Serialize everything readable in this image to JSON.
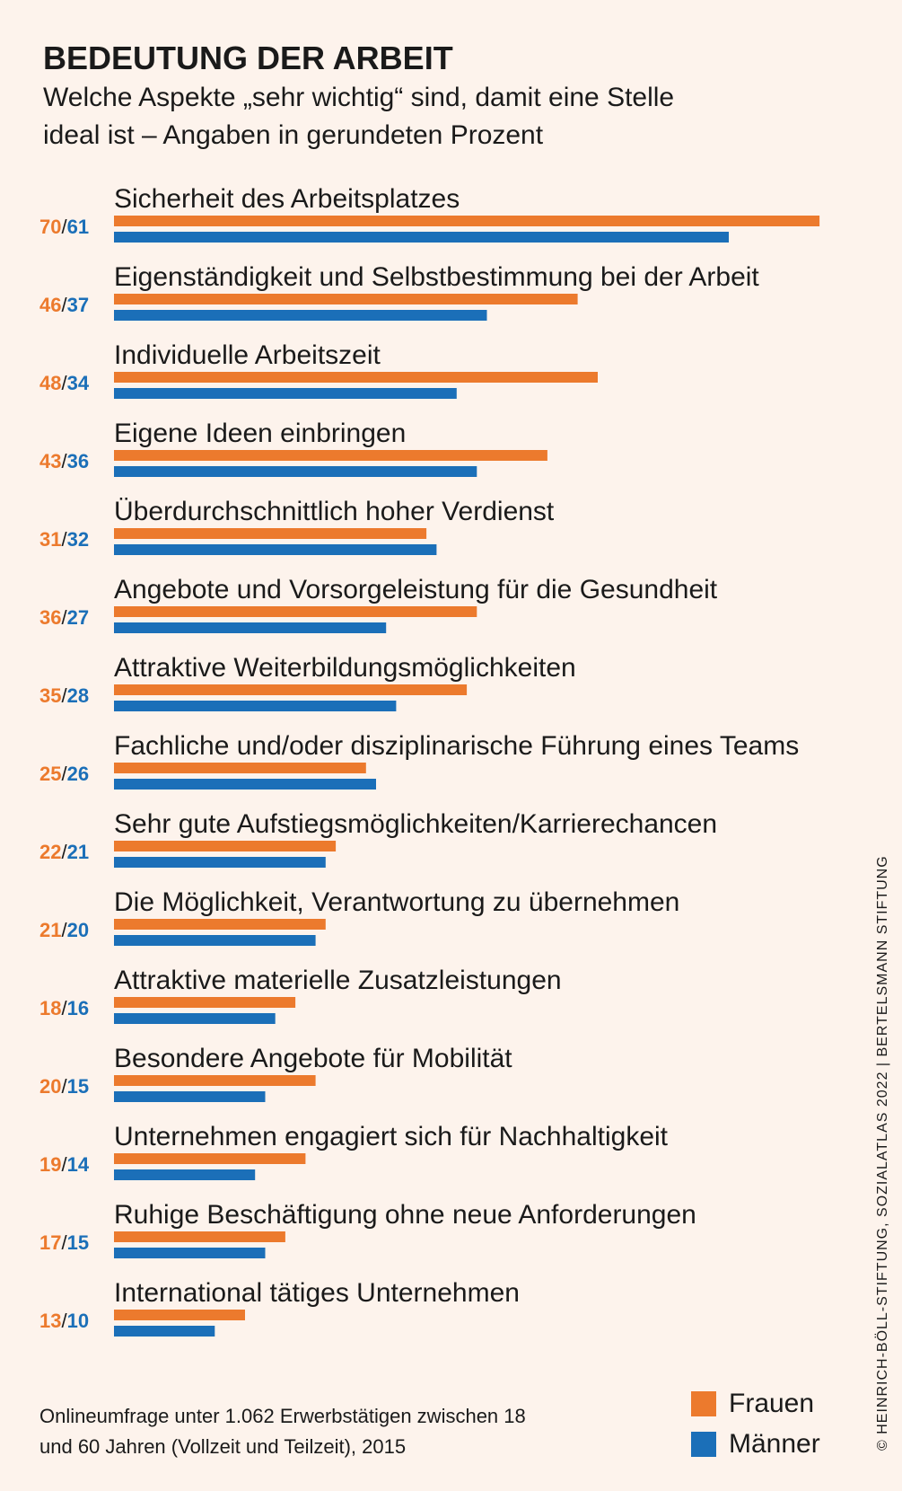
{
  "header": {
    "title": "BEDEUTUNG DER ARBEIT",
    "subtitle": "Welche Aspekte „sehr wichtig“ sind, damit eine Stelle ideal ist – Angaben in gerundeten Prozent"
  },
  "colors": {
    "frauen": "#ec7a2d",
    "maenner": "#1b6fb8",
    "background": "#fdf3ec"
  },
  "legend": {
    "frauen": "Frauen",
    "maenner": "Männer"
  },
  "source": "Onlineumfrage unter 1.062 Erwerbstätigen zwischen 18 und 60 Jahren (Vollzeit und Teilzeit), 2015",
  "credit": "© HEINRICH-BÖLL-STIFTUNG, SOZIALATLAS 2022 | BERTELSMANN STIFTUNG",
  "chart_data": {
    "type": "bar",
    "orientation": "horizontal",
    "title": "BEDEUTUNG DER ARBEIT",
    "xlabel": "",
    "ylabel": "",
    "xlim": [
      0,
      70
    ],
    "grid": false,
    "legend_position": "bottom-right",
    "categories": [
      "Sicherheit des Arbeitsplatzes",
      "Eigenständigkeit und Selbstbestimmung bei der Arbeit",
      "Individuelle Arbeitszeit",
      "Eigene Ideen einbringen",
      "Überdurchschnittlich hoher Verdienst",
      "Angebote und Vorsorgeleistung für die Gesundheit",
      "Attraktive Weiterbildungsmöglichkeiten",
      "Fachliche und/oder disziplinarische Führung eines Teams",
      "Sehr gute Aufstiegsmöglichkeiten/Karrierechancen",
      "Die Möglichkeit, Verantwortung zu übernehmen",
      "Attraktive materielle Zusatzleistungen",
      "Besondere Angebote für Mobilität",
      "Unternehmen engagiert sich für Nachhaltigkeit",
      "Ruhige Beschäftigung ohne neue Anforderungen",
      "International tätiges Unternehmen"
    ],
    "series": [
      {
        "name": "Frauen",
        "values": [
          70,
          46,
          48,
          43,
          31,
          36,
          35,
          25,
          22,
          21,
          18,
          20,
          19,
          17,
          13
        ]
      },
      {
        "name": "Männer",
        "values": [
          61,
          37,
          34,
          36,
          32,
          27,
          28,
          26,
          21,
          20,
          16,
          15,
          14,
          15,
          10
        ]
      }
    ]
  }
}
